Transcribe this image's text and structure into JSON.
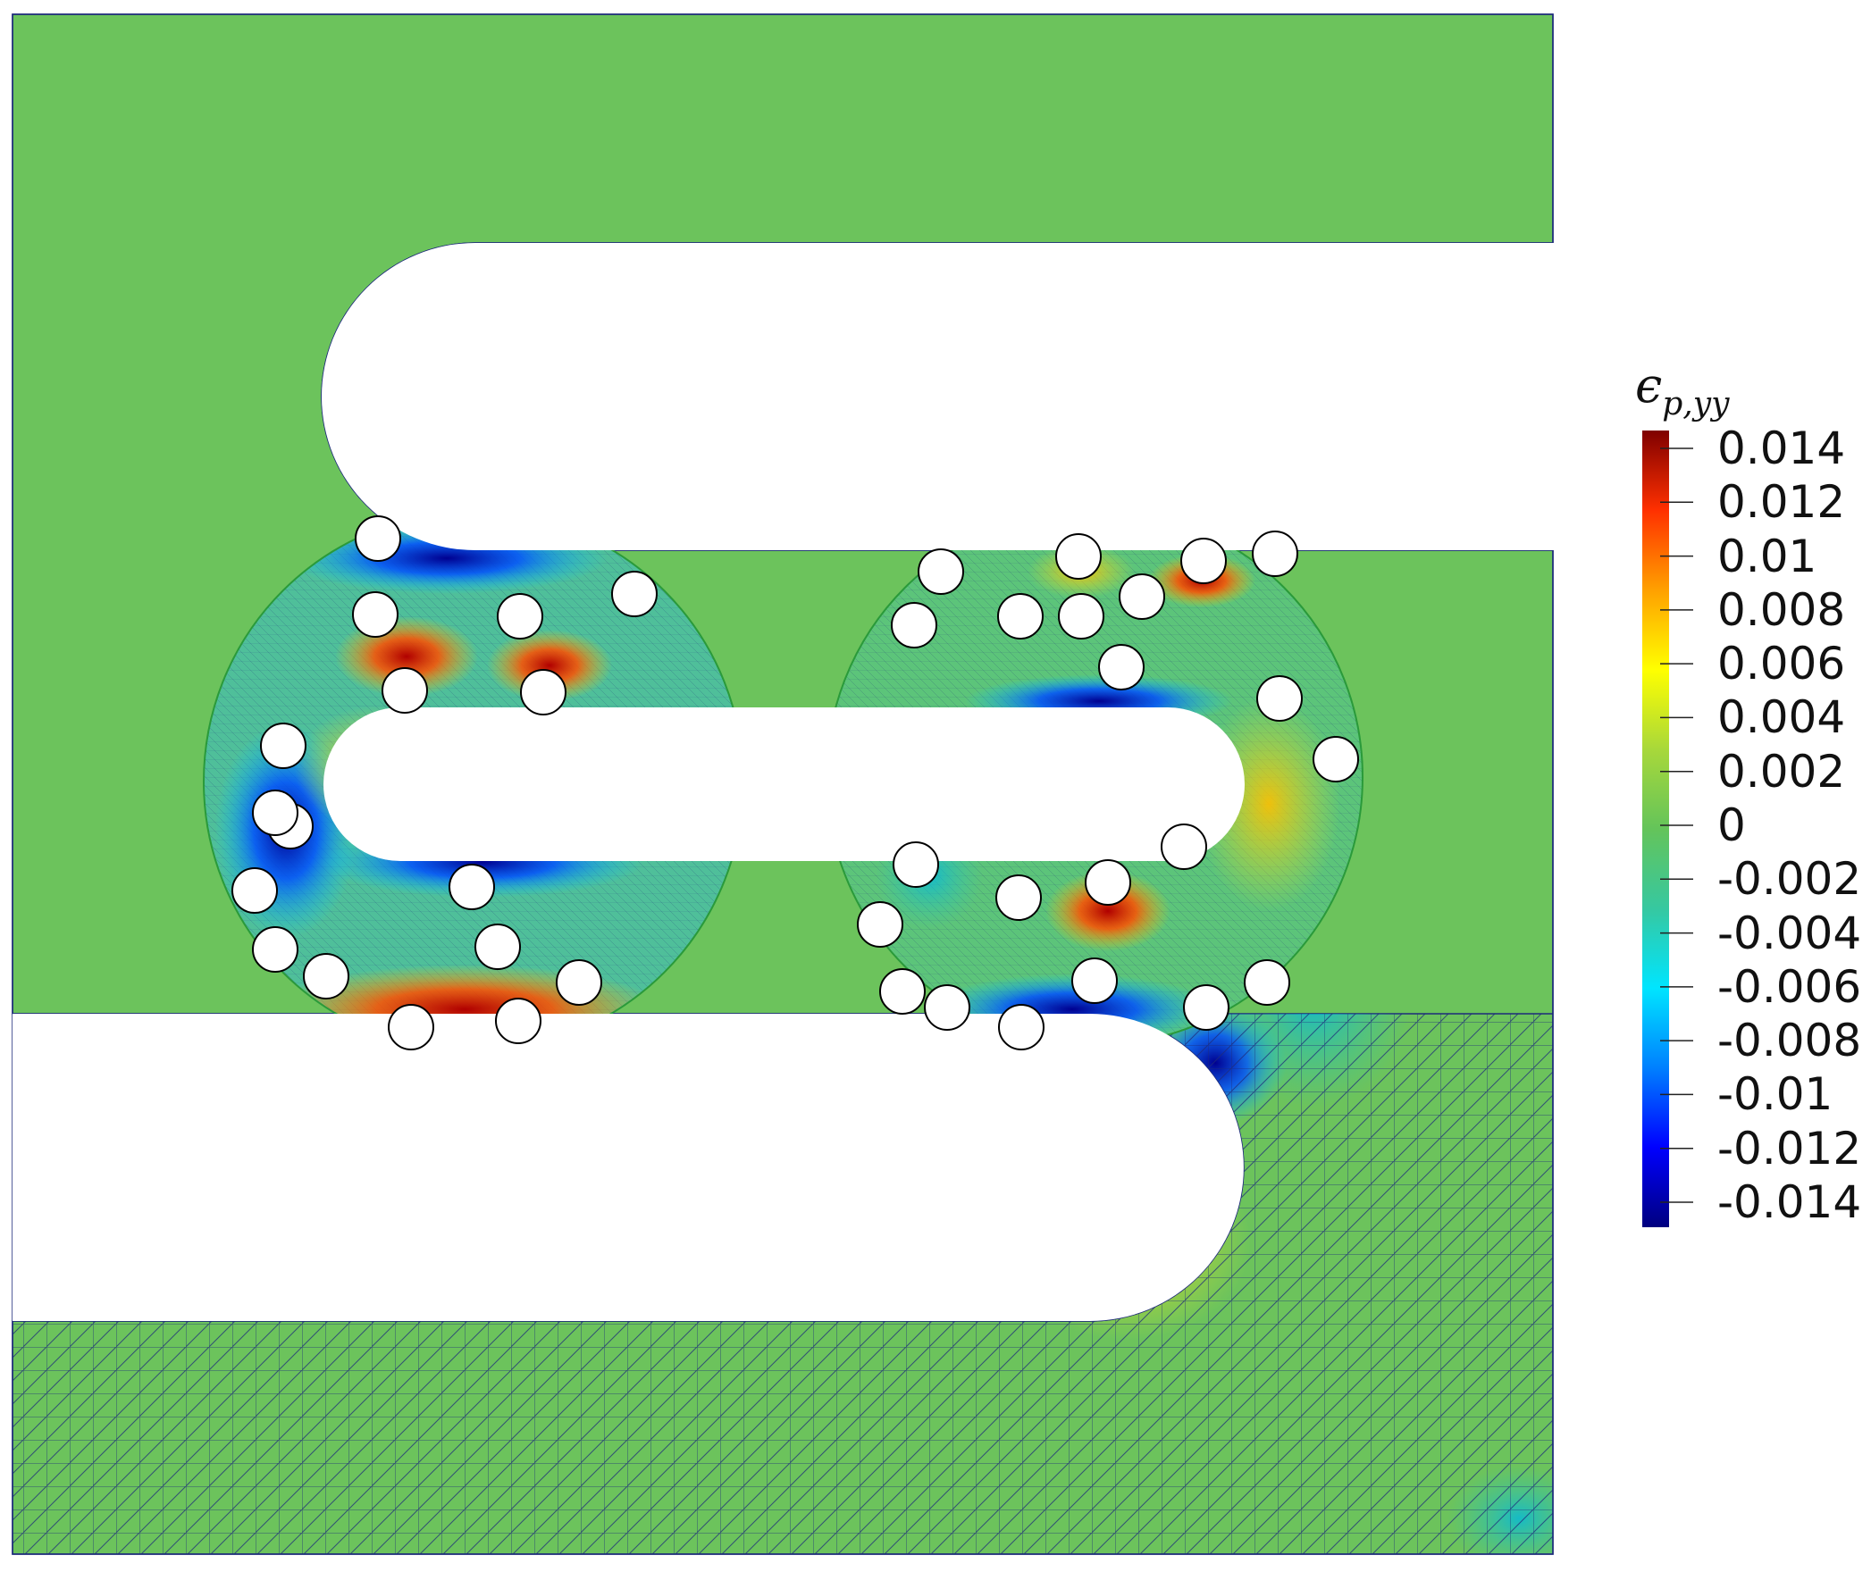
{
  "figure": {
    "colorbar": {
      "title_symbol": "ϵ",
      "title_subscript": "p,yy",
      "colormap": [
        "#00007f",
        "#0000ff",
        "#0080ff",
        "#00e5ff",
        "#36c8a0",
        "#64c45a",
        "#a8d83a",
        "#ffff00",
        "#ffa000",
        "#ff3000",
        "#7f0000"
      ],
      "ticks": [
        "0.014",
        "0.012",
        "0.01",
        "0.008",
        "0.006",
        "0.004",
        "0.002",
        "0",
        "-0.002",
        "-0.004",
        "-0.006",
        "-0.008",
        "-0.01",
        "-0.012",
        "-0.014"
      ],
      "range": [
        -0.014,
        0.014
      ]
    },
    "colors": {
      "domain_fill": "#6cc35c",
      "mesh_line": "#1d2a7a",
      "inclusion_fill": "#ffffff",
      "inclusion_stroke": "#000000",
      "circle_boundary": "#2a9a3a"
    }
  }
}
